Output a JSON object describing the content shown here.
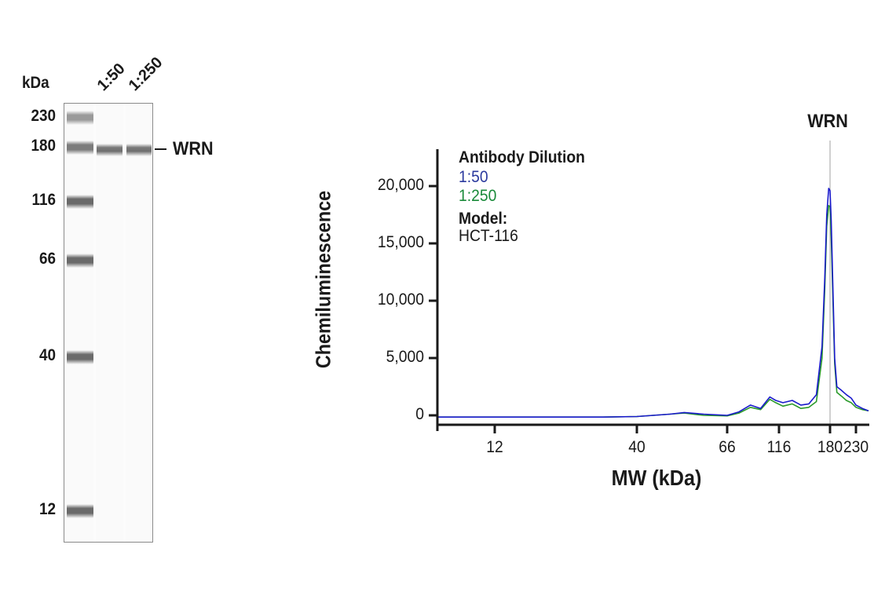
{
  "blot": {
    "unit_label": "kDa",
    "lanes": [
      "1:50",
      "1:250"
    ],
    "markers": [
      {
        "label": "230",
        "y": 149
      },
      {
        "label": "180",
        "y": 187
      },
      {
        "label": "116",
        "y": 256
      },
      {
        "label": "66",
        "y": 331
      },
      {
        "label": "40",
        "y": 454
      },
      {
        "label": "12",
        "y": 650
      }
    ],
    "target_label": "WRN",
    "band_color": "#6e6e6e"
  },
  "chart_data": {
    "type": "line",
    "title": "",
    "xlabel": "MW (kDa)",
    "ylabel": "Chemiluminescence",
    "x_scale": "log",
    "xticks": [
      12,
      40,
      66,
      116,
      180,
      230
    ],
    "xtick_labels": [
      "12",
      "40",
      "66",
      "116",
      "180",
      "230"
    ],
    "yticks": [
      0,
      5000,
      10000,
      15000,
      20000
    ],
    "ytick_labels": [
      "0",
      "5,000",
      "10,000",
      "15,000",
      "20,000"
    ],
    "ylim": [
      -800,
      23000
    ],
    "xlim": [
      8.5,
      260
    ],
    "grid": false,
    "annotation": {
      "label": "WRN",
      "x": 180
    },
    "legend": {
      "title": "Antibody Dilution",
      "entries": [
        {
          "label": "1:50",
          "color": "#2b3a9e"
        },
        {
          "label": "1:250",
          "color": "#1a8a3a"
        }
      ],
      "model_title": "Model:",
      "model_value": "HCT-116"
    },
    "series": [
      {
        "name": "1:50",
        "color": "#1a1acc",
        "x": [
          8.5,
          12,
          20,
          30,
          40,
          48,
          52,
          58,
          66,
          75,
          85,
          95,
          105,
          112,
          120,
          130,
          140,
          150,
          160,
          168,
          172,
          175,
          178,
          180,
          182,
          185,
          188,
          192,
          200,
          210,
          220,
          230,
          245,
          260
        ],
        "values": [
          -150,
          -150,
          -150,
          -150,
          -100,
          100,
          250,
          100,
          0,
          300,
          900,
          600,
          1600,
          1300,
          1100,
          1300,
          900,
          1000,
          1800,
          6000,
          12000,
          17500,
          19800,
          19600,
          17000,
          11000,
          5000,
          2500,
          2200,
          1800,
          1500,
          900,
          600,
          400
        ]
      },
      {
        "name": "1:250",
        "color": "#2a9a2a",
        "x": [
          8.5,
          12,
          20,
          30,
          40,
          48,
          52,
          58,
          66,
          75,
          85,
          95,
          105,
          112,
          120,
          130,
          140,
          150,
          160,
          168,
          172,
          175,
          178,
          180,
          182,
          185,
          188,
          192,
          200,
          210,
          220,
          230,
          245,
          260
        ],
        "values": [
          -150,
          -150,
          -150,
          -150,
          -100,
          100,
          200,
          0,
          -50,
          200,
          700,
          500,
          1400,
          1100,
          800,
          1000,
          600,
          700,
          1200,
          5000,
          11000,
          16500,
          18300,
          18200,
          15500,
          10000,
          4500,
          2000,
          1700,
          1300,
          1100,
          700,
          500,
          400
        ]
      }
    ]
  }
}
